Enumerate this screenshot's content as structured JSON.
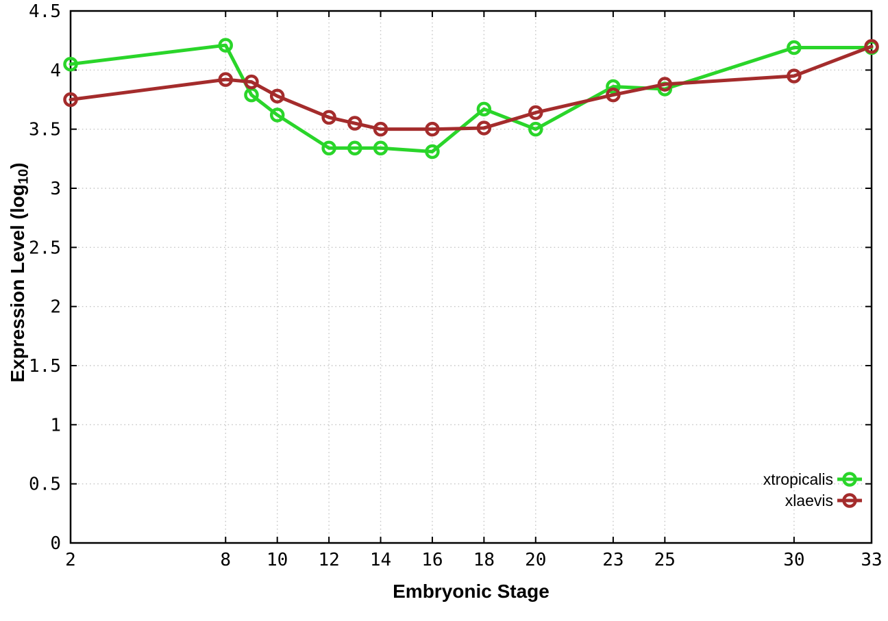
{
  "chart_data": {
    "type": "line",
    "title": "",
    "xlabel": "Embryonic Stage",
    "ylabel": "Expression Level (log10)",
    "ylabel_rich": {
      "prefix": "Expression Level (log",
      "subscript": "10",
      "suffix": ")"
    },
    "xlim": [
      2,
      33
    ],
    "ylim": [
      0,
      4.5
    ],
    "grid": true,
    "grid_style": "dotted",
    "x_ticks": [
      {
        "value": 2,
        "label": "2"
      },
      {
        "value": 8,
        "label": "8"
      },
      {
        "value": 10,
        "label": "10"
      },
      {
        "value": 12,
        "label": "12"
      },
      {
        "value": 14,
        "label": "14"
      },
      {
        "value": 16,
        "label": "16"
      },
      {
        "value": 18,
        "label": "18"
      },
      {
        "value": 20,
        "label": "20"
      },
      {
        "value": 23,
        "label": "23"
      },
      {
        "value": 25,
        "label": "25"
      },
      {
        "value": 30,
        "label": "30"
      },
      {
        "value": 33,
        "label": "33"
      }
    ],
    "y_ticks": [
      {
        "value": 0,
        "label": "0"
      },
      {
        "value": 0.5,
        "label": "0.5"
      },
      {
        "value": 1,
        "label": "1"
      },
      {
        "value": 1.5,
        "label": "1.5"
      },
      {
        "value": 2,
        "label": "2"
      },
      {
        "value": 2.5,
        "label": "2.5"
      },
      {
        "value": 3,
        "label": "3"
      },
      {
        "value": 3.5,
        "label": "3.5"
      },
      {
        "value": 4,
        "label": "4"
      },
      {
        "value": 4.5,
        "label": "4.5"
      }
    ],
    "x": [
      2,
      8,
      9,
      10,
      12,
      13,
      14,
      16,
      18,
      20,
      23,
      25,
      30,
      33
    ],
    "series": [
      {
        "name": "xtropicalis",
        "color": "#2ad52a",
        "marker": "open-circle",
        "values": [
          4.05,
          4.21,
          3.79,
          3.62,
          3.34,
          3.34,
          3.34,
          3.31,
          3.67,
          3.5,
          3.86,
          3.84,
          4.19,
          4.19
        ]
      },
      {
        "name": "xlaevis",
        "color": "#a42c2c",
        "marker": "open-circle",
        "values": [
          3.75,
          3.92,
          3.9,
          3.78,
          3.6,
          3.55,
          3.5,
          3.5,
          3.51,
          3.64,
          3.79,
          3.88,
          3.95,
          4.2
        ]
      }
    ],
    "legend": {
      "position": "inside-bottom-right"
    },
    "colors": {
      "background": "#ffffff",
      "grid": "#c6c6c6",
      "axis": "#000000",
      "text": "#000000"
    }
  }
}
